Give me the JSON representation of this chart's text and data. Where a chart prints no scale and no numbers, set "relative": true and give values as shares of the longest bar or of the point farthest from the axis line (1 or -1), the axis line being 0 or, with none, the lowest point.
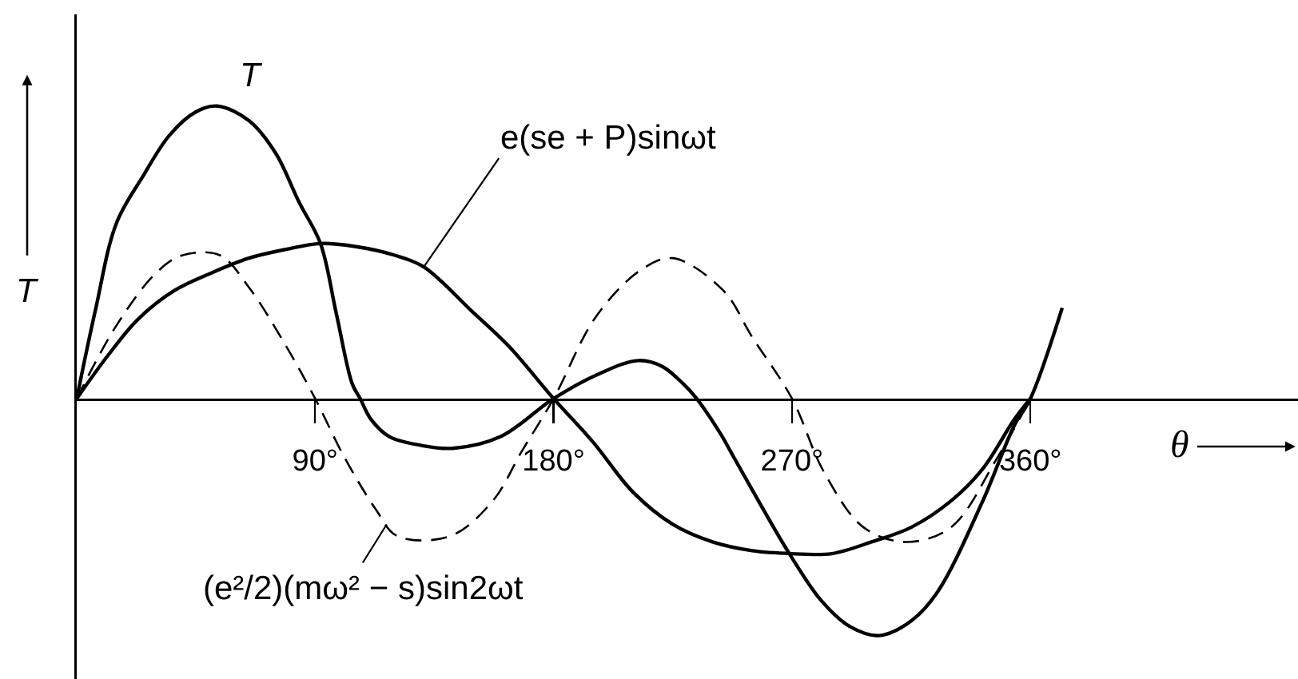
{
  "chart_data": {
    "type": "line",
    "relative": true,
    "xlabel": "θ",
    "ylabel": "T",
    "xlim": [
      0,
      461
    ],
    "xticks": [
      {
        "value": 90,
        "label": "90°"
      },
      {
        "value": 180,
        "label": "180°"
      },
      {
        "value": 270,
        "label": "270°"
      },
      {
        "value": 360,
        "label": "360°"
      }
    ],
    "series": [
      {
        "name": "T",
        "x": [
          0,
          7,
          15,
          25,
          35,
          45,
          53,
          65,
          75,
          84,
          92,
          98,
          104,
          107,
          111,
          118,
          130,
          142,
          160,
          180,
          196,
          212,
          221,
          229,
          234,
          243,
          248,
          258,
          269,
          281,
          292,
          303,
          315,
          325,
          342,
          354,
          360,
          372
        ],
        "values": [
          0,
          0.3,
          0.6,
          0.76,
          0.9,
          0.98,
          1.0,
          0.95,
          0.84,
          0.67,
          0.53,
          0.29,
          0.05,
          0,
          -0.07,
          -0.13,
          -0.16,
          -0.17,
          -0.13,
          0,
          0.08,
          0.13,
          0.11,
          0.05,
          0,
          -0.12,
          -0.2,
          -0.36,
          -0.53,
          -0.69,
          -0.78,
          -0.81,
          -0.76,
          -0.66,
          -0.35,
          -0.09,
          0,
          0.31
        ],
        "color": "#000000",
        "line_style": "solid"
      },
      {
        "x": [
          0,
          12,
          23,
          37,
          51,
          65,
          79,
          92,
          105,
          120,
          131,
          149,
          163,
          180,
          195,
          210,
          225,
          240,
          255,
          270,
          285,
          300,
          315,
          330,
          342,
          354,
          360
        ],
        "values": [
          0,
          0.15,
          0.27,
          0.37,
          0.43,
          0.48,
          0.51,
          0.53,
          0.52,
          0.49,
          0.45,
          0.3,
          0.18,
          0,
          -0.15,
          -0.32,
          -0.43,
          -0.49,
          -0.52,
          -0.53,
          -0.53,
          -0.49,
          -0.44,
          -0.35,
          -0.24,
          -0.07,
          0
        ],
        "color": "#000000",
        "line_style": "solid"
      },
      {
        "x": [
          0,
          15,
          30,
          40,
          54,
          65,
          79,
          90,
          101,
          113,
          121,
          141,
          157,
          168,
          180,
          196,
          213,
          225,
          244,
          255,
          270,
          282,
          297,
          313,
          330,
          347,
          360
        ],
        "values": [
          0,
          0.25,
          0.43,
          0.49,
          0.49,
          0.38,
          0.18,
          0,
          -0.2,
          -0.38,
          -0.47,
          -0.47,
          -0.35,
          -0.18,
          0,
          0.28,
          0.44,
          0.48,
          0.37,
          0.21,
          0,
          -0.25,
          -0.44,
          -0.49,
          -0.44,
          -0.21,
          0
        ],
        "color": "#000000",
        "line_style": "dashed"
      }
    ],
    "annotations": [
      {
        "text": "e(se + P)sinωt",
        "x": 131,
        "y": 0.45
      },
      {
        "text": "(e²/2)(mω² − s)sin2ωt",
        "x": 117,
        "y": -0.43
      }
    ]
  }
}
